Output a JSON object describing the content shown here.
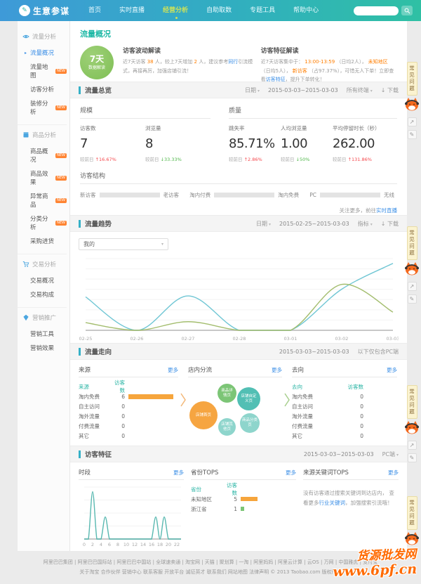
{
  "colors": {
    "nav_blue": "#3e9ad8",
    "nav_teal": "#2fc0a4",
    "active_menu": "#cde25a",
    "accent_teal": "#35b0c7",
    "title_teal": "#1db8a5",
    "link_blue": "#3a8ee6",
    "highlight_orange": "#ff7e00",
    "up_red": "#f5484d",
    "down_green": "#51b84c",
    "bar_teal": "#63c6bd",
    "badge_orange": "#ff8432",
    "bubble_orange": "#f6a541",
    "bubble_green": "#7cc576",
    "bubble_teal": "#52bfb4"
  },
  "icons": {
    "caret": "▾",
    "download": "↓",
    "share": "↗",
    "pencil": "✎",
    "circle_pen": "✎"
  },
  "navbar": {
    "logo": "生意参谋",
    "items": [
      {
        "label": "首页"
      },
      {
        "label": "实时直播"
      },
      {
        "label": "经营分析"
      },
      {
        "label": "自助取数"
      },
      {
        "label": "专题工具"
      },
      {
        "label": "帮助中心"
      }
    ],
    "search_value": ""
  },
  "sidebar": {
    "sections": [
      {
        "title": "流量分析",
        "items": [
          {
            "label": "流量概况"
          },
          {
            "label": "流量地图",
            "badge": "NEW"
          },
          {
            "label": "访客分析"
          },
          {
            "label": "装修分析",
            "badge": "NEW"
          }
        ]
      },
      {
        "title": "商品分析",
        "items": [
          {
            "label": "商品概况",
            "badge": "NEW"
          },
          {
            "label": "商品效果",
            "badge": "NEW"
          },
          {
            "label": "异常商品",
            "badge": "NEW"
          },
          {
            "label": "分类分析",
            "badge": "NEW"
          },
          {
            "label": "采购进货"
          }
        ]
      },
      {
        "title": "交易分析",
        "items": [
          {
            "label": "交易概况"
          },
          {
            "label": "交易构成"
          }
        ]
      },
      {
        "title": "营销推广",
        "items": [
          {
            "label": "营销工具"
          },
          {
            "label": "营销效果"
          }
        ]
      }
    ]
  },
  "overview": {
    "title": "流量概况",
    "circle_line1": "7天",
    "circle_line2": "数据解读",
    "wave": {
      "title": "访客波动解读",
      "p1": "近7天访客 ",
      "n1": "38",
      "p2": " 人，较上7天增加 ",
      "n2": "2",
      "p3": " 人，建议参考",
      "link": "同行",
      "p4": "引流模式，再接再厉，加强店铺引流！"
    },
    "feature": {
      "title": "访客特征解读",
      "p1": "近7天访客集中于： ",
      "hl1": "13:00-13:59",
      "p2": " （日均2人）， ",
      "hl2": "未知地区",
      "p3": " （日均5人）， ",
      "hl3": "新访客",
      "p4": " （占97.37%），可惜无人下单！立即查看",
      "link": "访客特征",
      "p5": "，提升下单转化！"
    }
  },
  "summary": {
    "title": "流量总览",
    "date_label": "日期",
    "date": "2015-03-03~2015-03-03",
    "terminal": "所有终端",
    "download": "下载",
    "scale": {
      "title": "规模",
      "metrics": [
        {
          "label": "访客数",
          "value": "7",
          "cmp": "较前日",
          "arrow": "↑",
          "delta": "16.67%"
        },
        {
          "label": "浏览量",
          "value": "8",
          "cmp": "较前日",
          "arrow": "↓",
          "delta": "33.33%"
        }
      ]
    },
    "quality": {
      "title": "质量",
      "metrics": [
        {
          "label": "跳失率",
          "value": "85.71%",
          "cmp": "较前日",
          "arrow": "↑",
          "delta": "2.86%"
        },
        {
          "label": "人均浏览量",
          "value": "1.00",
          "cmp": "较前日",
          "arrow": "↓",
          "delta": "50%"
        },
        {
          "label": "平均停留时长（秒）",
          "value": "262.00",
          "cmp": "较前日",
          "arrow": "↑",
          "delta": "131.86%"
        }
      ]
    },
    "structure": {
      "title": "访客结构",
      "bars": [
        {
          "left": "新访客",
          "right": "老访客",
          "pct": 87
        },
        {
          "left": "淘内付费",
          "right": "淘内免费",
          "pct": 0
        },
        {
          "left": "PC",
          "right": "无线",
          "pct": 87
        }
      ],
      "more_prefix": "关注更多，前往",
      "more_link": "实时直播"
    }
  },
  "trend": {
    "title": "流量趋势",
    "date_label": "日期",
    "date": "2015-02-25~2015-03-03",
    "metric_label": "指标",
    "download": "下载",
    "select_value": "我的"
  },
  "flow": {
    "title": "流量走向",
    "date": "2015-03-03~2015-03-03",
    "note": "以下仅包含PC端",
    "source": {
      "title": "来源",
      "more": "更多",
      "col1": "来源",
      "col2": "访客数",
      "rows": [
        {
          "label": "淘内免费",
          "value": 6,
          "bar_pct": 100
        },
        {
          "label": "自主访问",
          "value": 0,
          "bar_pct": 0
        },
        {
          "label": "淘外流量",
          "value": 0,
          "bar_pct": 0
        },
        {
          "label": "付费流量",
          "value": 0,
          "bar_pct": 0
        },
        {
          "label": "其它",
          "value": 0,
          "bar_pct": 0
        }
      ]
    },
    "instore": {
      "title": "店内分流",
      "more": "更多",
      "bubbles": [
        "店铺首页",
        "商品详情页",
        "店铺自定义页",
        "商品分类页",
        "店铺其他页"
      ]
    },
    "dest": {
      "title": "去向",
      "more": "更多",
      "col1": "去向",
      "col2": "访客数",
      "rows": [
        {
          "label": "淘内免费",
          "value": 0
        },
        {
          "label": "自主访问",
          "value": 0
        },
        {
          "label": "淘外流量",
          "value": 0
        },
        {
          "label": "付费流量",
          "value": 0
        },
        {
          "label": "其它",
          "value": 0
        }
      ]
    }
  },
  "visitor": {
    "title": "访客特征",
    "date": "2015-03-03~2015-03-03",
    "terminal": "PC端",
    "time": {
      "title": "时段",
      "more": "更多"
    },
    "province": {
      "title": "省份TOPS",
      "more": "更多",
      "col1": "省份",
      "col2": "访客数",
      "rows": [
        {
          "label": "未知地区",
          "value": 5,
          "bar_pct": 100
        },
        {
          "label": "浙江省",
          "value": 1,
          "bar_pct": 22
        }
      ]
    },
    "keyword": {
      "title": "来源关键词TOPS",
      "more": "更多",
      "p1": "没有访客通过搜索关键词到达店内， 查看更多",
      "link": "行业关键词",
      "p2": "，加强搜索引流哦！"
    }
  },
  "chart_data": [
    {
      "id": "trend",
      "type": "line",
      "title": "流量趋势",
      "x": [
        "02-25",
        "02-26",
        "02-27",
        "02-28",
        "03-01",
        "03-02",
        "03-03"
      ],
      "series": [
        {
          "name": "series-teal",
          "color": "#6fc6d4",
          "values": [
            3.5,
            0,
            3.6,
            0,
            0,
            4.3,
            7
          ]
        },
        {
          "name": "series-green",
          "color": "#a3bd6e",
          "values": [
            0.8,
            0,
            0.9,
            0,
            0,
            4.8,
            1.9
          ]
        }
      ],
      "ylim": [
        0,
        7.5
      ],
      "grid": true,
      "legend": "none"
    },
    {
      "id": "hours",
      "type": "line",
      "title": "时段",
      "x": [
        0,
        1,
        2,
        3,
        4,
        5,
        6,
        7,
        8,
        9,
        10,
        11,
        12,
        13,
        14,
        15,
        16,
        17,
        18,
        19,
        20,
        21,
        22,
        23
      ],
      "series": [
        {
          "name": "访客数",
          "color": "#58b8b0",
          "values": [
            0,
            0,
            3,
            0,
            0,
            1.4,
            0,
            0,
            0,
            0,
            0,
            0,
            0,
            0,
            0,
            0,
            0,
            1.4,
            0,
            1.4,
            0,
            0,
            0,
            0
          ]
        }
      ],
      "ylim": [
        0,
        3.3
      ],
      "grid": true,
      "legend": "none"
    }
  ],
  "footer": {
    "line1": "阿里巴巴集团 | 阿里巴巴国际站 | 阿里巴巴中国站 | 全球速卖通 | 淘宝网 | 天猫 | 聚划算 | 一淘 | 阿里妈妈 | 阿里云计算 | 云OS | 万网 | 中国雅虎 | 支付宝",
    "line2": "关于淘宝 合作伙伴 营销中心 联系客服 开放平台 诚征英才 联系我们 网站地图 法律声明 © 2013 Taobao.com 版权所有"
  },
  "floating": {
    "tab": "常见问题",
    "watermark_line1": "货源批发网",
    "watermark_line2": "www.6pf.cn"
  }
}
